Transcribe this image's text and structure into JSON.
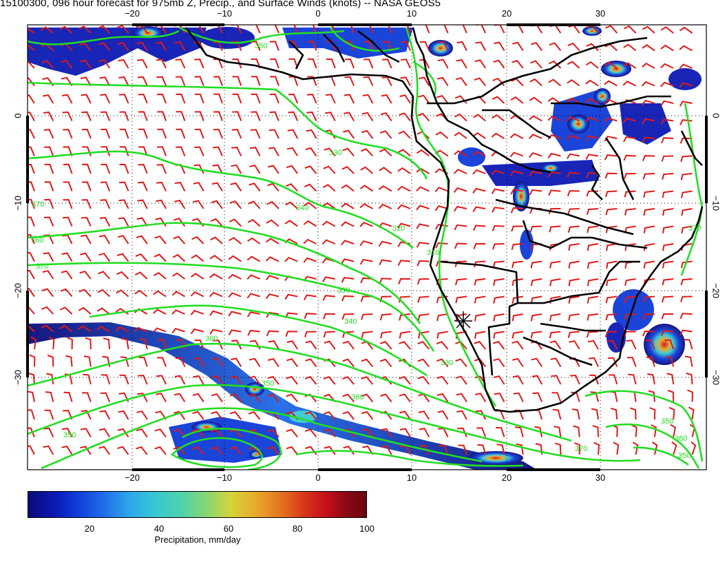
{
  "title": "15100300, 096 hour forecast for 975mb Z, Precip., and Surface Winds (knots) -- NASA GEOS5",
  "map": {
    "lon_range": [
      -30,
      40
    ],
    "lat_range": [
      -40,
      10
    ],
    "lon_ticks": [
      "−20",
      "−10",
      "0",
      "10",
      "20",
      "30"
    ],
    "lat_ticks": [
      "0",
      "−10",
      "−20",
      "−30"
    ],
    "contour_labels": [
      "350",
      "370",
      "340",
      "360",
      "330",
      "320",
      "310",
      "360",
      "350",
      "340",
      "330",
      "370",
      "360",
      "350",
      "350",
      "350",
      "370",
      "360",
      "350",
      "370"
    ],
    "colors": {
      "contour": "#22dd22",
      "wind_barb": "#e01818",
      "coast": "#000000",
      "ocean": "#ffffff",
      "grid": "#000000"
    },
    "marker": "station-marker"
  },
  "colorbar": {
    "ticks": [
      "20",
      "40",
      "60",
      "80",
      "100"
    ],
    "range": [
      0,
      100
    ],
    "label": "Precipitation, mm/day"
  }
}
